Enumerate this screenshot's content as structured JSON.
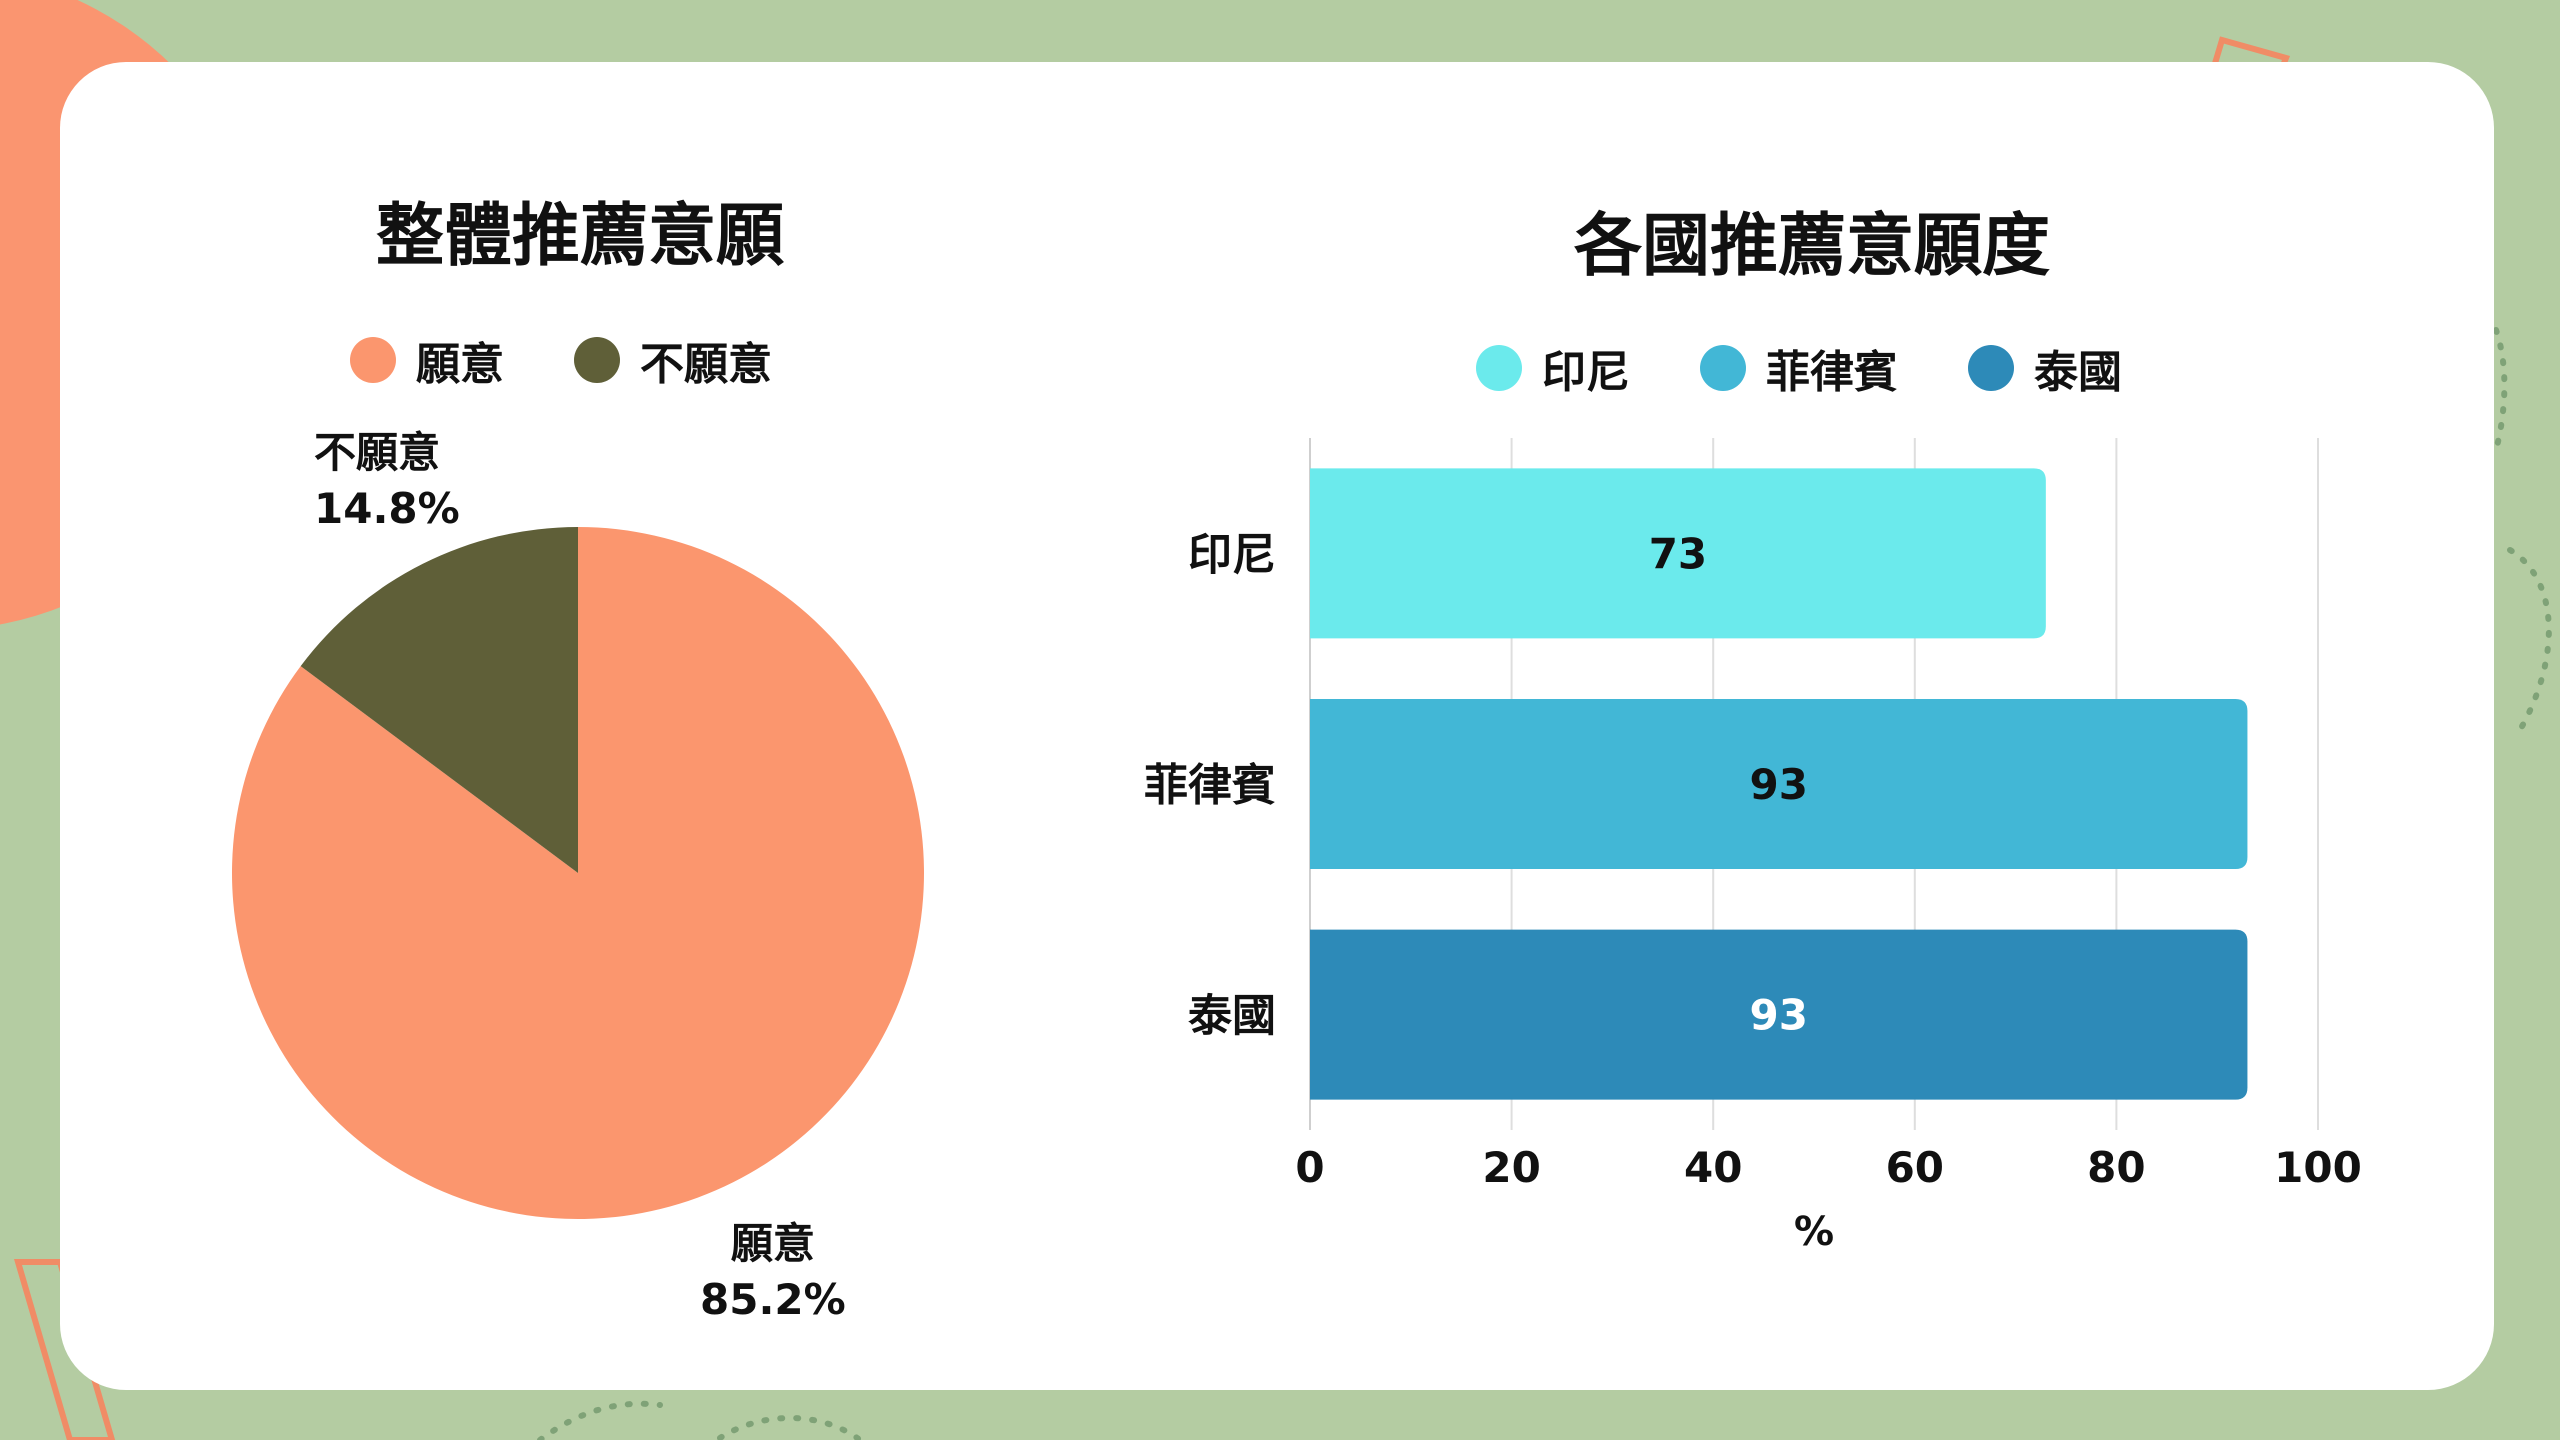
{
  "charts": {
    "pie": {
      "title": "整體推薦意願",
      "legend": [
        {
          "label": "願意",
          "color": "#fb966e"
        },
        {
          "label": "不願意",
          "color": "#5f5f38"
        }
      ],
      "slice_labels": {
        "no": {
          "name": "不願意",
          "value": "14.8%"
        },
        "yes": {
          "name": "願意",
          "value": "85.2%"
        }
      }
    },
    "bar": {
      "title": "各國推薦意願度",
      "legend": [
        {
          "label": "印尼",
          "color": "#6beaec"
        },
        {
          "label": "菲律賓",
          "color": "#42b7d6"
        },
        {
          "label": "泰國",
          "color": "#2d8ab8"
        }
      ],
      "xlabel": "%"
    }
  },
  "chart_data": [
    {
      "type": "pie",
      "title": "整體推薦意願",
      "categories": [
        "願意",
        "不願意"
      ],
      "values": [
        85.2,
        14.8
      ],
      "colors": [
        "#fb966e",
        "#5f5f38"
      ],
      "legend_position": "top"
    },
    {
      "type": "bar",
      "orientation": "horizontal",
      "title": "各國推薦意願度",
      "categories": [
        "印尼",
        "菲律賓",
        "泰國"
      ],
      "values": [
        73,
        93,
        93
      ],
      "colors": [
        "#6beaec",
        "#42b7d6",
        "#2d8ab8"
      ],
      "xlabel": "%",
      "ylabel": "",
      "xlim": [
        0,
        100
      ],
      "xticks": [
        0,
        20,
        40,
        60,
        80,
        100
      ],
      "grid": true,
      "legend_position": "top"
    }
  ]
}
